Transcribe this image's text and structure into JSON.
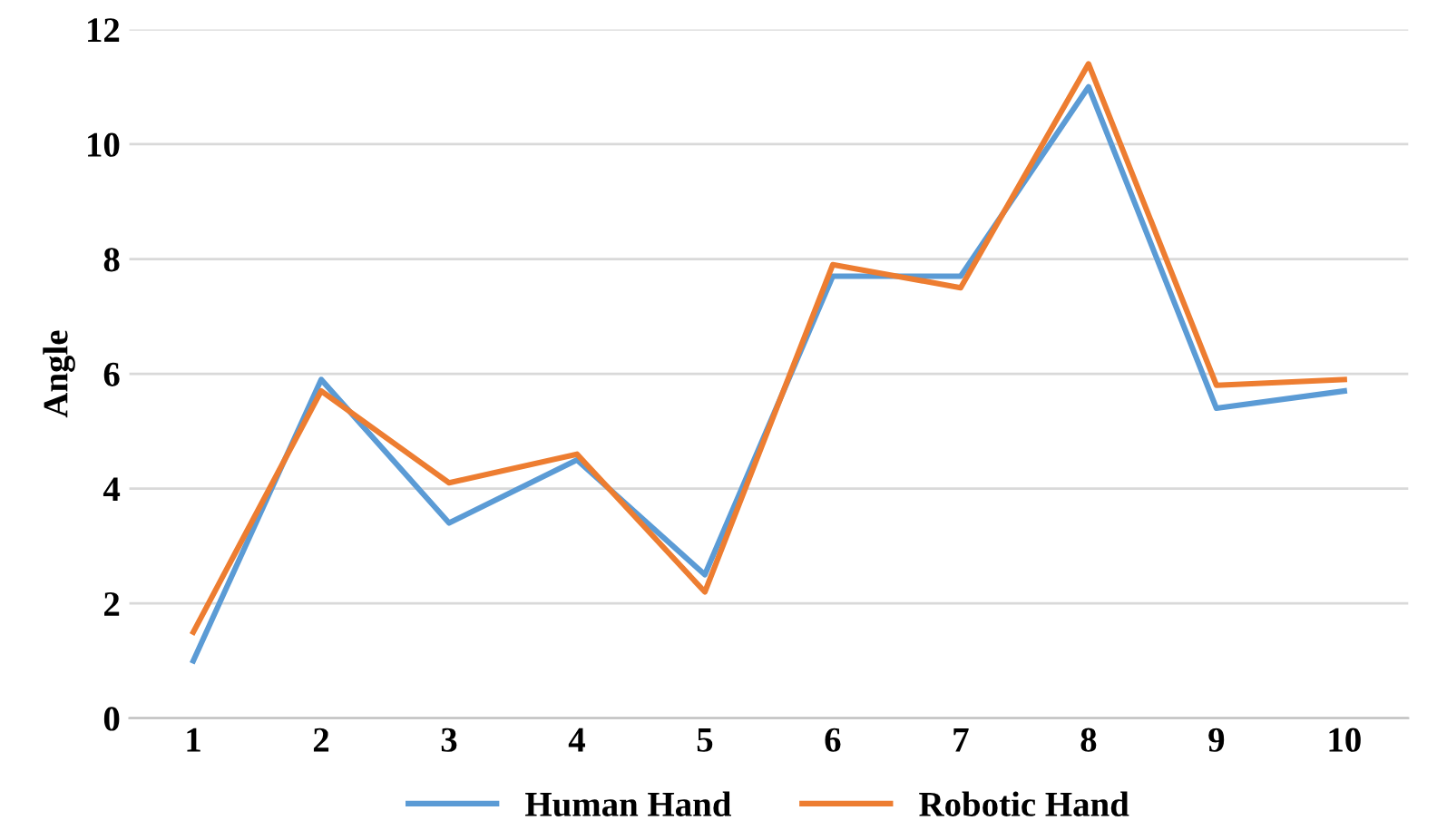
{
  "chart_data": {
    "type": "line",
    "ylabel": "Angle",
    "categories": [
      "1",
      "2",
      "3",
      "4",
      "5",
      "6",
      "7",
      "8",
      "9",
      "10"
    ],
    "series": [
      {
        "name": "Human Hand",
        "color": "#5b9bd5",
        "values": [
          1.0,
          5.9,
          3.4,
          4.5,
          2.5,
          7.7,
          7.7,
          11.0,
          5.4,
          5.7
        ]
      },
      {
        "name": "Robotic Hand",
        "color": "#ed7d31",
        "values": [
          1.5,
          5.7,
          4.1,
          4.6,
          2.2,
          7.9,
          7.5,
          11.4,
          5.8,
          5.9
        ]
      }
    ],
    "ylim": [
      0,
      12
    ],
    "yticks": [
      0,
      2,
      4,
      6,
      8,
      10,
      12
    ],
    "grid": "y",
    "legend": "bottom",
    "marker": "none",
    "line_style": "solid"
  }
}
